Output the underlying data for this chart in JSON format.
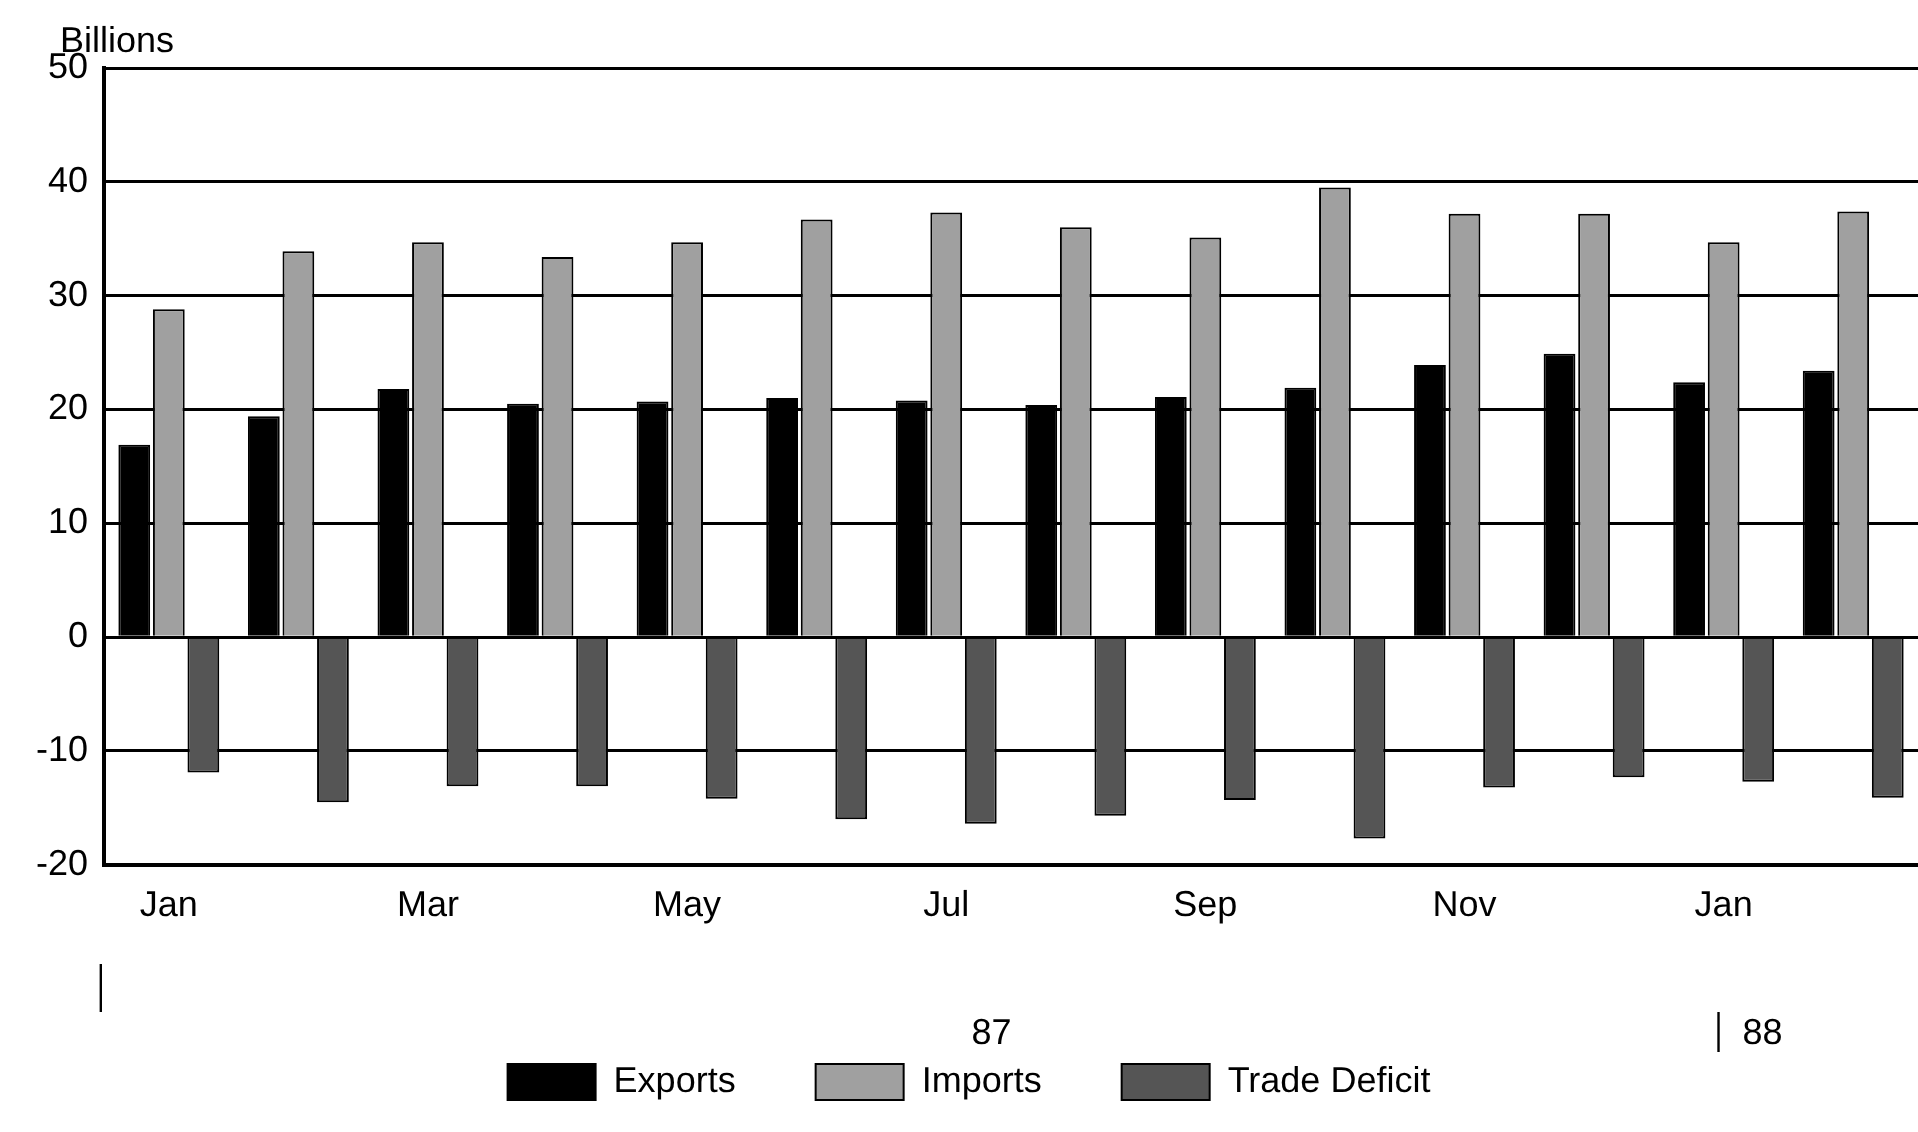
{
  "chart_data": {
    "type": "bar",
    "ylabel": "Billions",
    "categories": [
      "Jan",
      null,
      "Mar",
      null,
      "May",
      null,
      "Jul",
      null,
      "Sep",
      null,
      "Nov",
      null,
      "Jan",
      null
    ],
    "series": [
      {
        "name": "Exports",
        "color": "#000000",
        "values": [
          16.9,
          19.4,
          21.8,
          20.5,
          20.7,
          21.0,
          20.8,
          20.4,
          21.1,
          21.9,
          23.9,
          24.9,
          22.4,
          23.4
        ]
      },
      {
        "name": "Imports",
        "color": "#a0a0a0",
        "values": [
          28.8,
          33.9,
          34.7,
          33.4,
          34.7,
          36.7,
          37.3,
          36.0,
          35.1,
          39.5,
          37.2,
          37.2,
          34.7,
          37.4
        ]
      },
      {
        "name": "Trade Deficit",
        "color": "#555555",
        "values": [
          -11.9,
          -14.5,
          -13.1,
          -13.1,
          -14.2,
          -16.0,
          -16.4,
          -15.7,
          -14.3,
          -17.7,
          -13.2,
          -12.3,
          -12.7,
          -14.1
        ]
      }
    ],
    "ylim": [
      -20,
      50
    ],
    "yticks": [
      -20,
      -10,
      0,
      10,
      20,
      30,
      40,
      50
    ],
    "grid": "y",
    "legend": "bottom",
    "annotations": [
      "87",
      "88"
    ]
  }
}
